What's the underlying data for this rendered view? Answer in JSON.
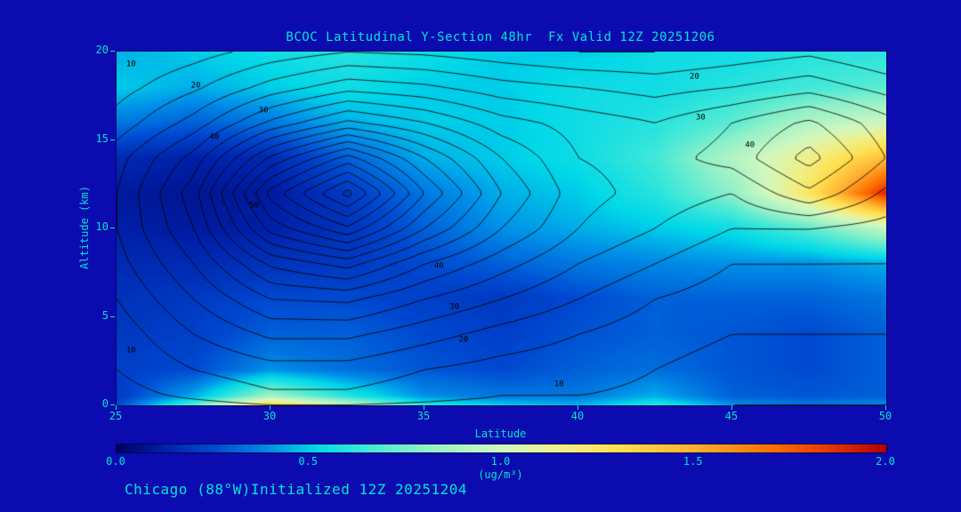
{
  "title": "BCOC Latitudinal Y-Section 48hr  Fx Valid 12Z 20251206",
  "footer": "Chicago (88°W)Initialized 12Z 20251204",
  "colors": {
    "background": "#0B0BAF",
    "text": "#00E6D2",
    "contour_line": "#000000"
  },
  "axes": {
    "x_label": "Latitude",
    "y_label": "Altitude (km)",
    "x_ticks": [
      25,
      30,
      35,
      40,
      45,
      50
    ],
    "y_ticks": [
      0,
      5,
      10,
      15,
      20
    ],
    "x_range": [
      25,
      50
    ],
    "y_range": [
      0,
      20
    ]
  },
  "colorbar": {
    "ticks": [
      "0.0",
      "0.5",
      "1.0",
      "1.5",
      "2.0"
    ],
    "unit": "(ug/m³)",
    "range": [
      0,
      2
    ],
    "stops": [
      [
        0.0,
        "#000064"
      ],
      [
        0.12,
        "#0020A8"
      ],
      [
        0.25,
        "#0048D0"
      ],
      [
        0.4,
        "#0090E8"
      ],
      [
        0.52,
        "#00D8E8"
      ],
      [
        0.65,
        "#40E8D8"
      ],
      [
        0.8,
        "#90F0C8"
      ],
      [
        1.0,
        "#D0F8C0"
      ],
      [
        1.15,
        "#F0F088"
      ],
      [
        1.3,
        "#FFE050"
      ],
      [
        1.5,
        "#FFB030"
      ],
      [
        1.7,
        "#FF7000"
      ],
      [
        1.85,
        "#E83800"
      ],
      [
        2.0,
        "#B40000"
      ]
    ]
  },
  "chart_data": {
    "type": "heatmap",
    "title": "BCOC Latitudinal Y-Section 48hr  Fx Valid 12Z 20251206",
    "xlabel": "Latitude",
    "ylabel": "Altitude (km)",
    "fill_units": "ug/m³",
    "x_lats": [
      25,
      27.5,
      30,
      32.5,
      35,
      37.5,
      40,
      42.5,
      45,
      47.5,
      50
    ],
    "y_alts": [
      0,
      0.5,
      2,
      4,
      6,
      8,
      10,
      12,
      14,
      16,
      18,
      20
    ],
    "fill_values": [
      [
        0.25,
        0.7,
        1.35,
        0.95,
        0.6,
        0.5,
        0.45,
        0.6,
        0.4,
        0.35,
        0.4
      ],
      [
        0.2,
        0.45,
        0.85,
        0.6,
        0.4,
        0.35,
        0.35,
        0.45,
        0.3,
        0.28,
        0.3
      ],
      [
        0.22,
        0.25,
        0.4,
        0.33,
        0.28,
        0.25,
        0.3,
        0.33,
        0.28,
        0.25,
        0.3
      ],
      [
        0.2,
        0.22,
        0.3,
        0.3,
        0.25,
        0.22,
        0.27,
        0.3,
        0.28,
        0.25,
        0.3
      ],
      [
        0.18,
        0.2,
        0.25,
        0.25,
        0.22,
        0.2,
        0.25,
        0.3,
        0.3,
        0.3,
        0.34
      ],
      [
        0.15,
        0.15,
        0.18,
        0.2,
        0.25,
        0.3,
        0.35,
        0.38,
        0.4,
        0.4,
        0.45
      ],
      [
        0.12,
        0.1,
        0.12,
        0.18,
        0.3,
        0.4,
        0.45,
        0.5,
        0.55,
        0.7,
        0.95
      ],
      [
        0.1,
        0.08,
        0.1,
        0.2,
        0.35,
        0.45,
        0.5,
        0.6,
        0.8,
        1.25,
        1.9
      ],
      [
        0.15,
        0.12,
        0.15,
        0.3,
        0.45,
        0.5,
        0.55,
        0.65,
        0.9,
        1.15,
        1.45
      ],
      [
        0.35,
        0.3,
        0.35,
        0.45,
        0.5,
        0.5,
        0.55,
        0.6,
        0.7,
        0.9,
        1.0
      ],
      [
        0.5,
        0.45,
        0.5,
        0.55,
        0.5,
        0.5,
        0.55,
        0.55,
        0.6,
        0.65,
        0.7
      ],
      [
        0.45,
        0.5,
        0.55,
        0.6,
        0.55,
        0.5,
        0.5,
        0.55,
        0.55,
        0.6,
        0.6
      ]
    ],
    "contour_values": [
      [
        6,
        8,
        10,
        10,
        9,
        8,
        8,
        7,
        5,
        5,
        5
      ],
      [
        8,
        11,
        14,
        14,
        12,
        10,
        10,
        9,
        7,
        7,
        7
      ],
      [
        10,
        15,
        18,
        18,
        15,
        13,
        12,
        10,
        8,
        8,
        8
      ],
      [
        12,
        20,
        26,
        26,
        22,
        18,
        15,
        12,
        10,
        10,
        10
      ],
      [
        15,
        25,
        35,
        36,
        30,
        25,
        20,
        15,
        12,
        12,
        12
      ],
      [
        18,
        30,
        46,
        52,
        40,
        32,
        25,
        20,
        15,
        15,
        15
      ],
      [
        20,
        35,
        62,
        74,
        55,
        40,
        30,
        25,
        20,
        20,
        18
      ],
      [
        20,
        38,
        72,
        92,
        65,
        45,
        32,
        28,
        25,
        34,
        24
      ],
      [
        18,
        32,
        56,
        72,
        55,
        40,
        30,
        28,
        32,
        42,
        30
      ],
      [
        12,
        22,
        36,
        46,
        40,
        32,
        28,
        25,
        30,
        36,
        27
      ],
      [
        8,
        14,
        22,
        28,
        26,
        22,
        20,
        18,
        20,
        23,
        18
      ],
      [
        5,
        8,
        12,
        15,
        14,
        12,
        10,
        10,
        12,
        14,
        10
      ]
    ],
    "contour_levels": [
      5,
      10,
      15,
      20,
      25,
      30,
      35,
      40,
      45,
      50,
      55,
      60,
      65,
      70,
      75,
      80,
      85,
      90
    ],
    "contour_labels": [
      {
        "lat": 25.5,
        "alt": 19.2,
        "text": "10"
      },
      {
        "lat": 27.6,
        "alt": 18.0,
        "text": "20"
      },
      {
        "lat": 29.8,
        "alt": 16.6,
        "text": "30"
      },
      {
        "lat": 28.2,
        "alt": 15.1,
        "text": "40"
      },
      {
        "lat": 29.5,
        "alt": 11.2,
        "text": "50"
      },
      {
        "lat": 43.8,
        "alt": 18.5,
        "text": "20"
      },
      {
        "lat": 44.0,
        "alt": 16.2,
        "text": "30"
      },
      {
        "lat": 45.6,
        "alt": 14.6,
        "text": "40"
      },
      {
        "lat": 35.5,
        "alt": 7.8,
        "text": "40"
      },
      {
        "lat": 36.0,
        "alt": 5.5,
        "text": "30"
      },
      {
        "lat": 36.3,
        "alt": 3.6,
        "text": "20"
      },
      {
        "lat": 39.4,
        "alt": 1.1,
        "text": "10"
      },
      {
        "lat": 25.5,
        "alt": 3.0,
        "text": "10"
      }
    ]
  }
}
